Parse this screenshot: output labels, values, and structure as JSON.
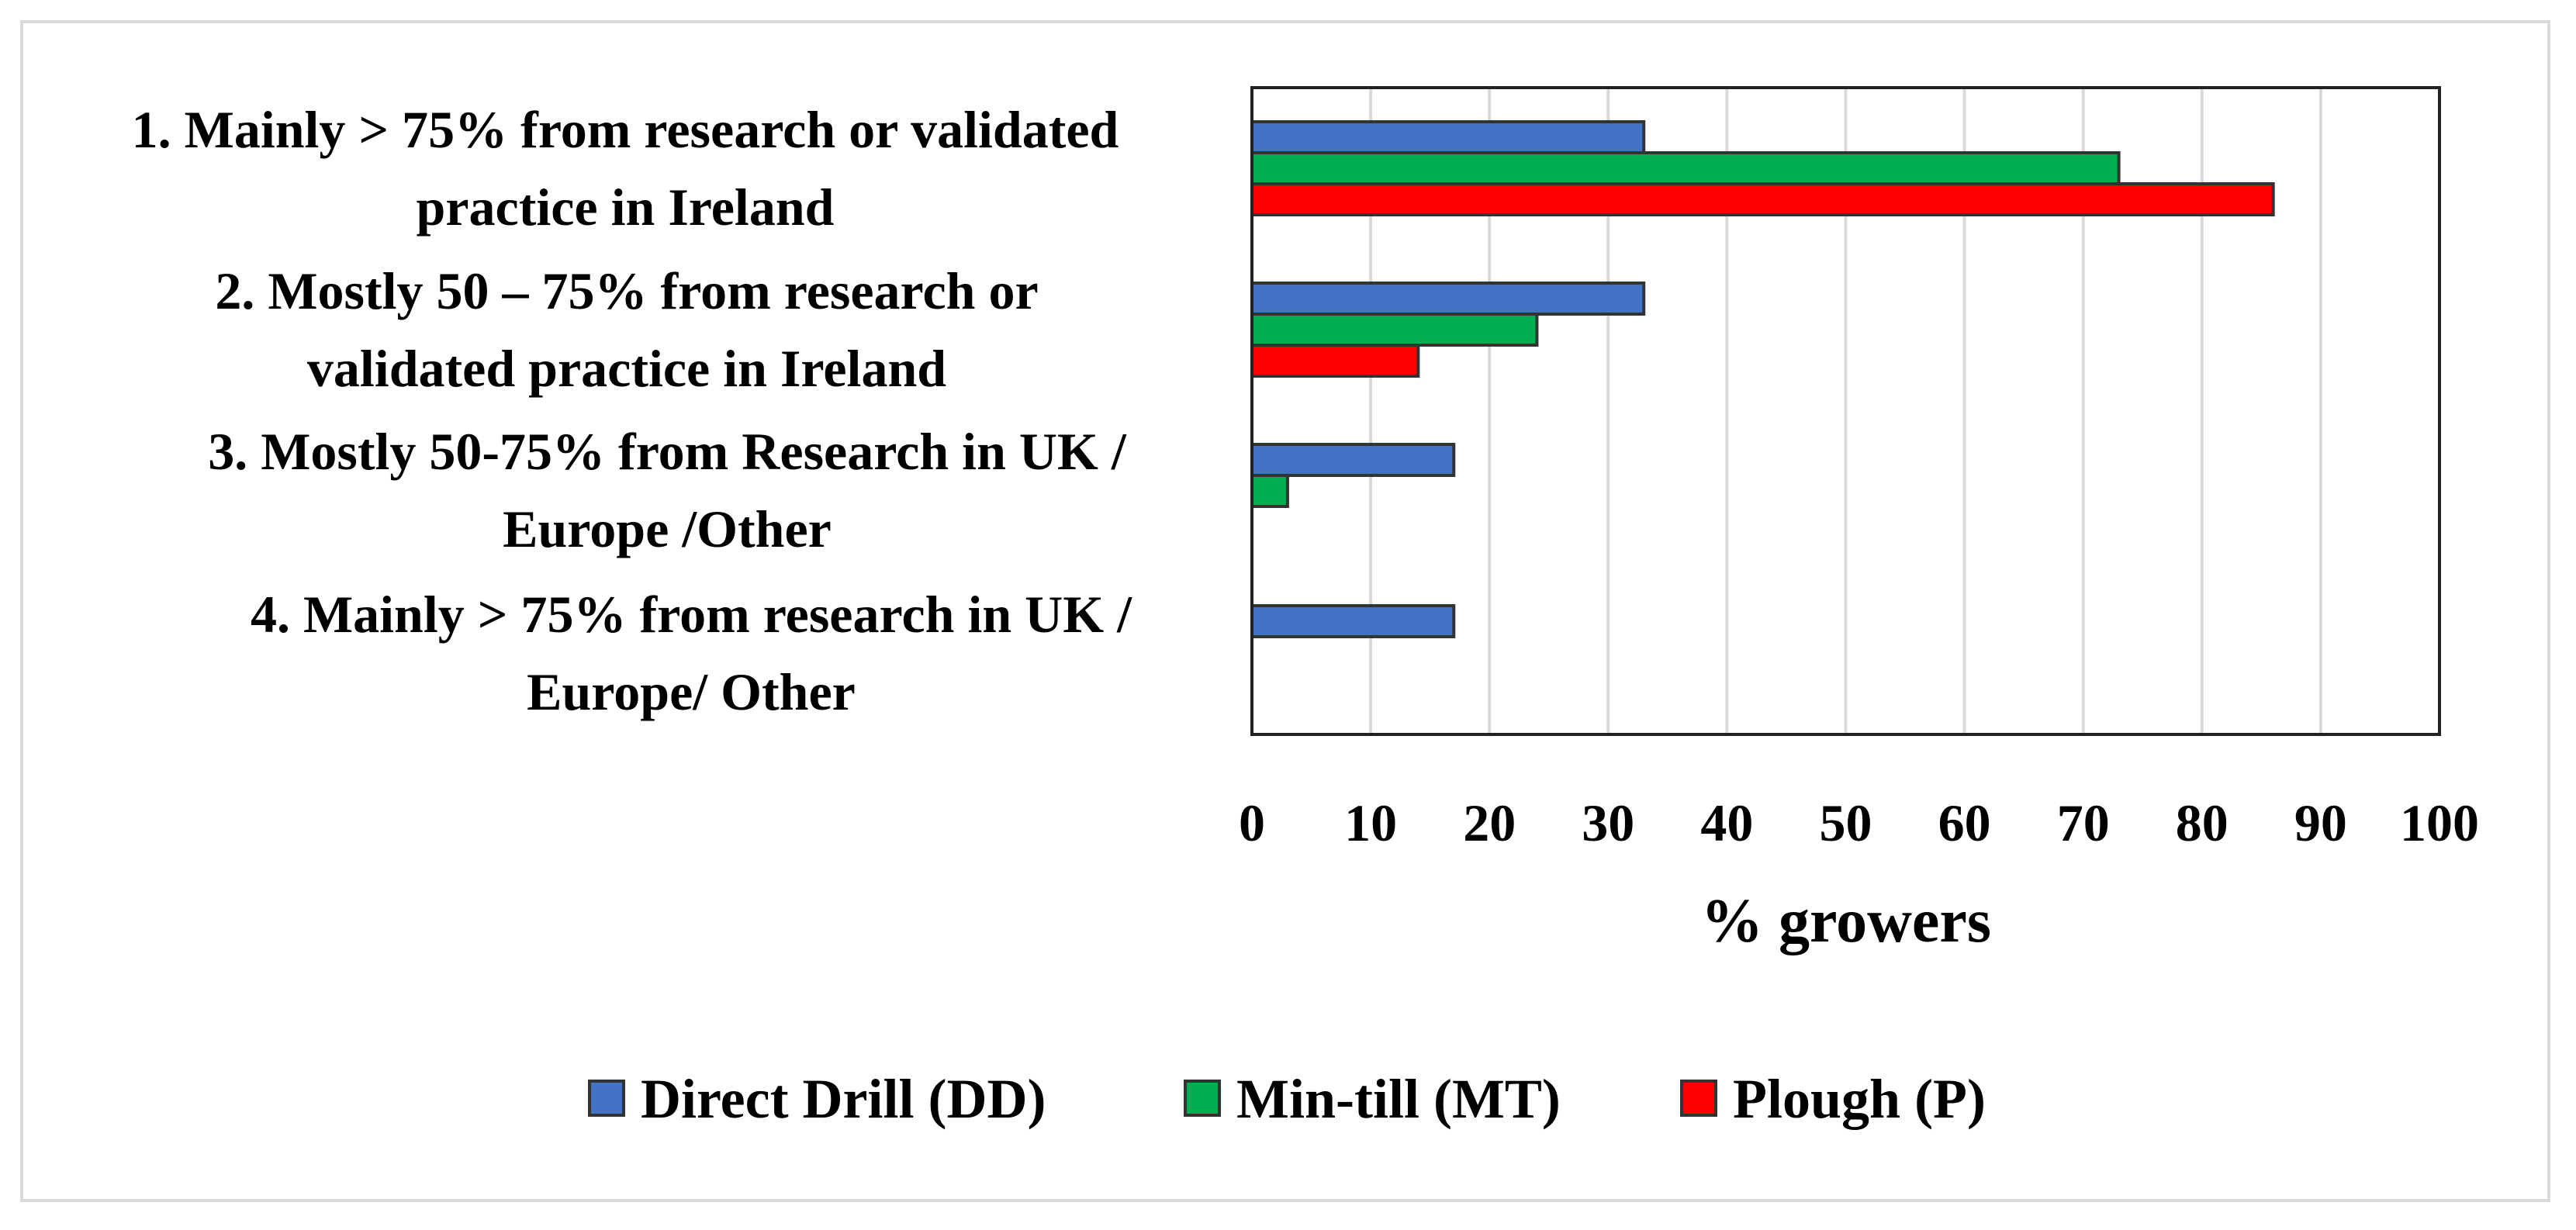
{
  "chart_data": {
    "type": "bar",
    "orientation": "horizontal",
    "title": "",
    "categories": [
      [
        "1. Mainly > 75% from research or validated",
        "practice in Ireland"
      ],
      [
        "2. Mostly  50 – 75% from research or",
        "validated practice in Ireland"
      ],
      [
        "3. Mostly 50-75% from Research in UK /",
        "Europe /Other"
      ],
      [
        "4. Mainly > 75% from research in UK /",
        "Europe/ Other"
      ]
    ],
    "series": [
      {
        "name": "Direct Drill (DD)",
        "color": "#4472c4",
        "values": [
          33,
          33,
          17,
          17
        ]
      },
      {
        "name": "Min-till (MT)",
        "color": "#00b050",
        "values": [
          73,
          24,
          3,
          0
        ]
      },
      {
        "name": "Plough (P)",
        "color": "#ff0000",
        "values": [
          86,
          14,
          0,
          0
        ]
      }
    ],
    "xlabel": "% growers",
    "ylabel": "",
    "xlim": [
      0,
      100
    ],
    "xticks": [
      "0",
      "10",
      "20",
      "30",
      "40",
      "50",
      "60",
      "70",
      "80",
      "90",
      "100"
    ],
    "grid": true,
    "legend_position": "bottom"
  }
}
